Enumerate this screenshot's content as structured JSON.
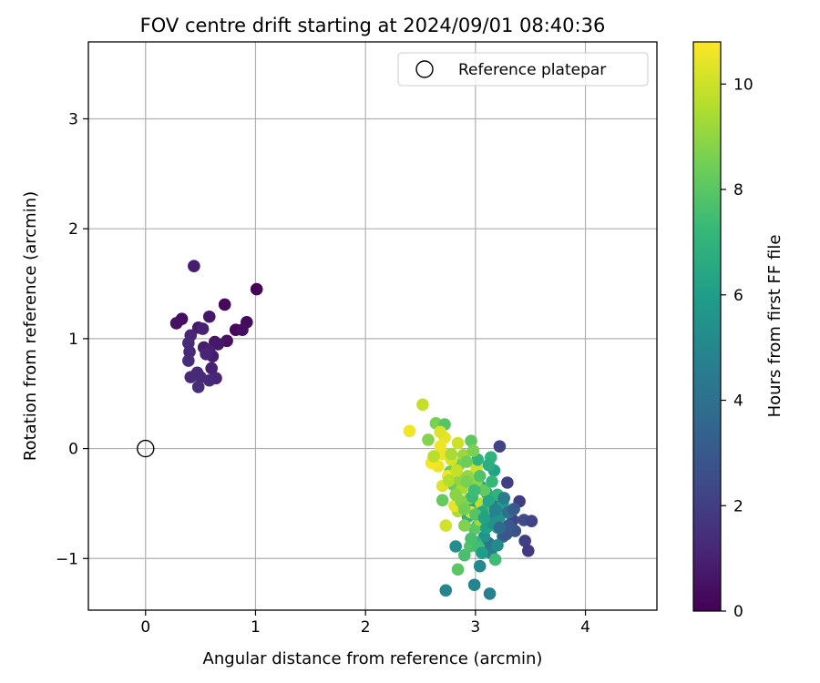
{
  "chart_data": {
    "type": "scatter",
    "title": "FOV centre drift starting at 2024/09/01 08:40:36",
    "xlabel": "Angular distance from reference (arcmin)",
    "ylabel": "Rotation from reference (arcmin)",
    "xlim": [
      -0.52,
      4.65
    ],
    "ylim": [
      -1.47,
      3.7
    ],
    "x_ticks": [
      0,
      1,
      2,
      3,
      4
    ],
    "y_ticks": [
      -1,
      0,
      1,
      2,
      3
    ],
    "grid": true,
    "legend": {
      "placement": "top-right",
      "label": "Reference platepar"
    },
    "reference_point": {
      "x": 0,
      "y": 0
    },
    "colorbar": {
      "label": "Hours from first FF file",
      "colormap": "viridis",
      "range": [
        0,
        10.8
      ],
      "ticks": [
        0,
        2,
        4,
        6,
        8,
        10
      ]
    },
    "series": [
      {
        "points": [
          [
            0.44,
            1.66,
            0.9
          ],
          [
            1.01,
            1.45,
            0.1
          ],
          [
            0.72,
            1.31,
            0.2
          ],
          [
            0.33,
            1.18,
            0.4
          ],
          [
            0.28,
            1.14,
            0.5
          ],
          [
            0.58,
            1.2,
            0.7
          ],
          [
            0.92,
            1.15,
            0.3
          ],
          [
            0.82,
            1.08,
            0.2
          ],
          [
            0.88,
            1.08,
            0.4
          ],
          [
            0.48,
            1.1,
            0.8
          ],
          [
            0.52,
            1.09,
            1.0
          ],
          [
            0.41,
            1.03,
            1.1
          ],
          [
            0.39,
            0.96,
            1.3
          ],
          [
            0.63,
            0.97,
            0.6
          ],
          [
            0.74,
            0.98,
            0.5
          ],
          [
            0.66,
            0.95,
            0.7
          ],
          [
            0.53,
            0.92,
            0.9
          ],
          [
            0.4,
            0.88,
            1.2
          ],
          [
            0.58,
            0.88,
            1.0
          ],
          [
            0.61,
            0.84,
            0.9
          ],
          [
            0.55,
            0.86,
            1.1
          ],
          [
            0.39,
            0.8,
            1.4
          ],
          [
            0.6,
            0.73,
            1.0
          ],
          [
            0.47,
            0.69,
            1.2
          ],
          [
            0.41,
            0.65,
            1.3
          ],
          [
            0.64,
            0.64,
            1.1
          ],
          [
            0.5,
            0.65,
            1.3
          ],
          [
            0.58,
            0.62,
            1.2
          ],
          [
            0.48,
            0.56,
            1.4
          ],
          [
            3.22,
            0.02,
            2.2
          ],
          [
            3.29,
            -0.31,
            2.0
          ],
          [
            3.4,
            -0.48,
            1.9
          ],
          [
            3.34,
            -0.65,
            2.3
          ],
          [
            3.44,
            -0.65,
            2.5
          ],
          [
            3.51,
            -0.66,
            2.2
          ],
          [
            3.45,
            -0.84,
            2.0
          ],
          [
            3.48,
            -0.93,
            1.8
          ],
          [
            3.36,
            -0.75,
            2.7
          ],
          [
            3.3,
            -0.7,
            3.0
          ],
          [
            3.25,
            -0.8,
            3.3
          ],
          [
            3.21,
            -0.55,
            3.6
          ],
          [
            3.18,
            -0.45,
            4.0
          ],
          [
            3.15,
            -0.62,
            4.4
          ],
          [
            3.12,
            -0.86,
            4.2
          ],
          [
            3.14,
            -0.95,
            4.6
          ],
          [
            3.13,
            -1.32,
            4.8
          ],
          [
            2.73,
            -1.29,
            5.0
          ],
          [
            2.99,
            -1.24,
            4.9
          ],
          [
            3.04,
            -1.07,
            5.1
          ],
          [
            2.82,
            -0.89,
            5.3
          ],
          [
            3.08,
            -0.8,
            5.6
          ],
          [
            3.02,
            -0.7,
            5.8
          ],
          [
            3.22,
            -0.62,
            5.5
          ],
          [
            3.17,
            -0.2,
            6.2
          ],
          [
            3.05,
            -0.35,
            6.0
          ],
          [
            2.98,
            -0.5,
            6.3
          ],
          [
            3.1,
            -0.4,
            6.5
          ],
          [
            3.14,
            -0.08,
            7.0
          ],
          [
            3.2,
            -0.72,
            6.6
          ],
          [
            2.93,
            -0.62,
            6.8
          ],
          [
            3.0,
            -0.85,
            7.1
          ],
          [
            3.18,
            -1.01,
            7.4
          ],
          [
            2.9,
            -0.97,
            7.6
          ],
          [
            2.95,
            -0.89,
            7.8
          ],
          [
            3.03,
            -0.9,
            7.5
          ],
          [
            2.84,
            -1.1,
            8.0
          ],
          [
            2.7,
            -0.47,
            8.2
          ],
          [
            2.77,
            -0.21,
            8.4
          ],
          [
            2.64,
            0.23,
            8.6
          ],
          [
            2.57,
            0.08,
            8.8
          ],
          [
            2.8,
            -0.33,
            8.3
          ],
          [
            2.96,
            0.07,
            8.1
          ],
          [
            2.85,
            -0.15,
            8.5
          ],
          [
            2.72,
            0.22,
            7.9
          ],
          [
            2.99,
            -0.73,
            8.0
          ],
          [
            2.9,
            -0.7,
            8.7
          ],
          [
            3.04,
            -0.65,
            9.3
          ],
          [
            2.84,
            -0.57,
            9.5
          ],
          [
            2.95,
            -0.45,
            8.9
          ],
          [
            3.01,
            -0.3,
            9.0
          ],
          [
            2.89,
            -0.06,
            9.2
          ],
          [
            3.05,
            -0.5,
            9.8
          ],
          [
            3.01,
            -0.18,
            10.0
          ],
          [
            2.96,
            -0.58,
            10.2
          ],
          [
            2.81,
            -0.52,
            10.4
          ],
          [
            2.73,
            -0.7,
            10.1
          ],
          [
            2.7,
            -0.34,
            10.3
          ],
          [
            2.75,
            -0.25,
            10.6
          ],
          [
            2.66,
            -0.16,
            10.5
          ],
          [
            2.6,
            -0.13,
            10.7
          ],
          [
            2.72,
            0.1,
            10.4
          ],
          [
            2.68,
            0.02,
            10.6
          ],
          [
            2.7,
            -0.05,
            10.5
          ],
          [
            2.78,
            -0.1,
            10.2
          ],
          [
            2.84,
            0.05,
            10.0
          ],
          [
            2.52,
            0.4,
            9.9
          ],
          [
            2.4,
            0.16,
            10.6
          ],
          [
            2.68,
            0.15,
            10.3
          ],
          [
            2.62,
            -0.07,
            9.7
          ],
          [
            2.76,
            -0.29,
            9.6
          ],
          [
            2.88,
            -0.36,
            9.4
          ],
          [
            2.93,
            -0.25,
            9.1
          ],
          [
            2.82,
            -0.42,
            8.9
          ],
          [
            3.08,
            -0.38,
            8.2
          ],
          [
            3.1,
            -0.55,
            7.7
          ],
          [
            3.15,
            -0.3,
            7.2
          ],
          [
            3.2,
            -0.42,
            6.9
          ],
          [
            3.25,
            -0.5,
            5.9
          ],
          [
            3.1,
            -0.72,
            6.1
          ],
          [
            3.06,
            -0.58,
            6.4
          ],
          [
            2.97,
            -0.44,
            7.3
          ],
          [
            3.02,
            -0.1,
            7.0
          ],
          [
            2.92,
            -0.12,
            8.4
          ],
          [
            2.86,
            -0.28,
            9.0
          ],
          [
            2.98,
            -0.02,
            8.6
          ],
          [
            3.12,
            -0.15,
            6.7
          ],
          [
            3.26,
            -0.45,
            4.5
          ],
          [
            3.3,
            -0.58,
            3.9
          ],
          [
            3.35,
            -0.55,
            3.1
          ],
          [
            3.2,
            -0.88,
            5.2
          ],
          [
            3.28,
            -0.78,
            2.9
          ],
          [
            3.06,
            -0.95,
            6.0
          ],
          [
            2.96,
            -0.82,
            7.6
          ],
          [
            3.0,
            -0.6,
            7.9
          ],
          [
            2.87,
            -0.48,
            8.8
          ],
          [
            2.78,
            -0.05,
            9.4
          ],
          [
            2.83,
            -0.2,
            9.9
          ],
          [
            2.92,
            -0.3,
            8.6
          ],
          [
            3.04,
            -0.25,
            7.8
          ],
          [
            3.12,
            -0.48,
            6.4
          ],
          [
            3.16,
            -0.68,
            5.4
          ],
          [
            3.08,
            -0.63,
            6.2
          ],
          [
            2.99,
            -0.38,
            7.4
          ],
          [
            2.9,
            -0.55,
            8.5
          ],
          [
            3.18,
            -0.56,
            4.8
          ],
          [
            3.22,
            -0.72,
            3.7
          ]
        ]
      }
    ]
  }
}
